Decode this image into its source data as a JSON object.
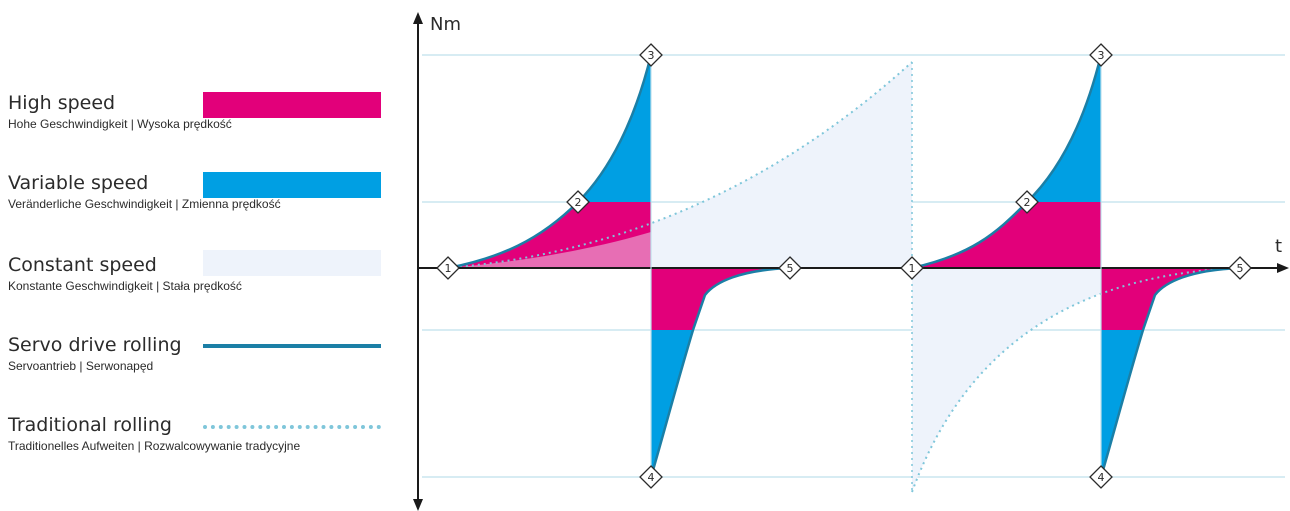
{
  "colors": {
    "high_speed": "#e2007a",
    "variable_speed": "#009fe3",
    "constant_speed": "#eef3fb",
    "servo_line": "#1b7fa6",
    "traditional_dots": "#7fc6da",
    "grid": "#bfe0ec",
    "axis": "#1a1a1a"
  },
  "legend": {
    "items": [
      {
        "title": "High speed",
        "subtitle": "Hohe Geschwindigkeit | Wysoka prędkość",
        "type": "fill",
        "color_key": "high_speed"
      },
      {
        "title": "Variable speed",
        "subtitle": "Veränderliche Geschwindigkeit | Zmienna prędkość",
        "type": "fill",
        "color_key": "variable_speed"
      },
      {
        "title": "Constant speed",
        "subtitle": "Konstante Geschwindigkeit | Stała prędkość",
        "type": "fill",
        "color_key": "constant_speed"
      },
      {
        "title": "Servo drive rolling",
        "subtitle": "Servoantrieb | Serwonapęd",
        "type": "solid-line",
        "color_key": "servo_line"
      },
      {
        "title": "Traditional rolling",
        "subtitle": "Traditionelles Aufweiten | Rozwalcowywanie tradycyjne",
        "type": "dotted-line",
        "color_key": "traditional_dots"
      }
    ]
  },
  "axes": {
    "y_label": "Nm",
    "x_label": "t"
  },
  "markers": [
    "1",
    "2",
    "3",
    "4",
    "5"
  ]
}
